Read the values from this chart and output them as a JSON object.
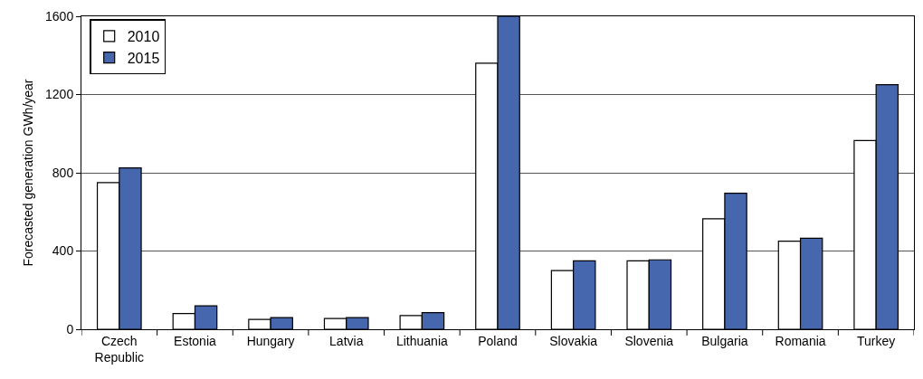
{
  "chart_data": {
    "type": "bar",
    "ylabel": "Forecasted generation GWh/year",
    "categories": [
      "Czech Republic",
      "Estonia",
      "Hungary",
      "Latvia",
      "Lithuania",
      "Poland",
      "Slovakia",
      "Slovenia",
      "Bulgaria",
      "Romania",
      "Turkey"
    ],
    "series": [
      {
        "name": "2010",
        "color": "#ffffff",
        "values": [
          750,
          80,
          50,
          55,
          70,
          1360,
          300,
          350,
          565,
          450,
          965
        ]
      },
      {
        "name": "2015",
        "color": "#4666ae",
        "values": [
          825,
          120,
          60,
          60,
          85,
          1600,
          350,
          355,
          695,
          465,
          1250
        ]
      }
    ],
    "ylim": [
      0,
      1600
    ],
    "yticks": [
      0,
      400,
      800,
      1200,
      1600
    ],
    "grid": "y",
    "legend": "top left"
  }
}
